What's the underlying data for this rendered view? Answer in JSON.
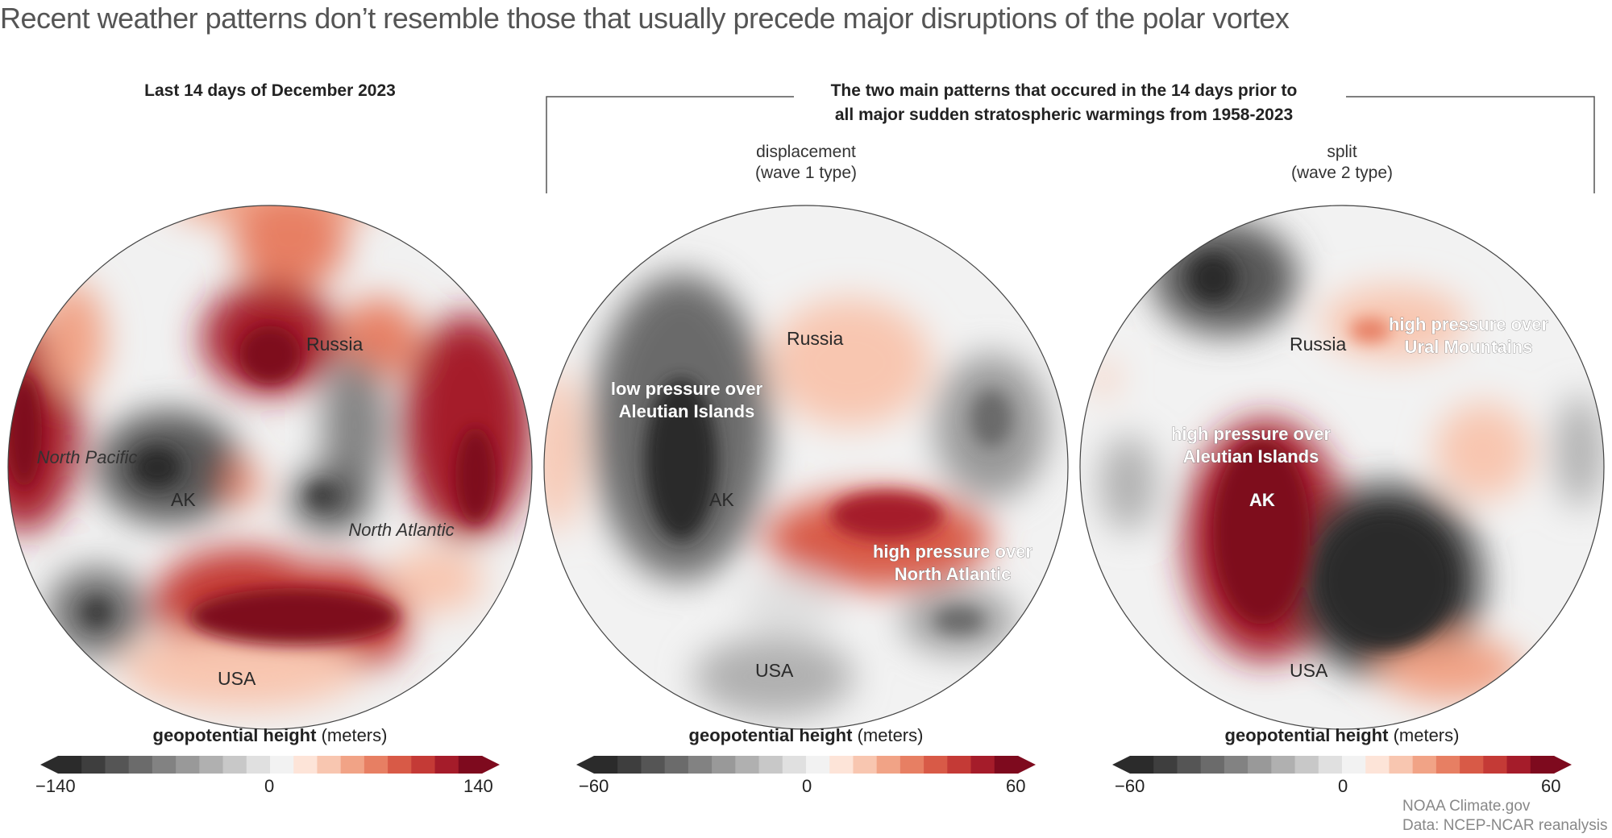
{
  "title": "Recent weather patterns don’t resemble those that usually precede major disruptions of the polar vortex",
  "panel1": {
    "heading": "Last 14 days of December 2023",
    "labels": {
      "russia": "Russia",
      "north_pacific": "North Pacific",
      "ak": "AK",
      "north_atlantic": "North Atlantic",
      "usa": "USA"
    },
    "legend": {
      "title_bold": "geopotential height",
      "title_unit": "(meters)",
      "min": "−140",
      "mid": "0",
      "max": "140"
    }
  },
  "bracket_heading": {
    "line1": "The two main patterns that occured in the 14 days prior to",
    "line2": "all major sudden stratospheric warmings from 1958-2023"
  },
  "panel2": {
    "heading_line1": "displacement",
    "heading_line2": "(wave 1 type)",
    "labels": {
      "russia": "Russia",
      "low1": "low pressure over",
      "low2": "Aleutian Islands",
      "ak": "AK",
      "high1": "high pressure over",
      "high2": "North Atlantic",
      "usa": "USA"
    },
    "legend": {
      "title_bold": "geopotential height",
      "title_unit": "(meters)",
      "min": "−60",
      "mid": "0",
      "max": "60"
    }
  },
  "panel3": {
    "heading_line1": "split",
    "heading_line2": "(wave 2 type)",
    "labels": {
      "russia": "Russia",
      "ural1": "high pressure over",
      "ural2": "Ural Mountains",
      "aleut1": "high pressure over",
      "aleut2": "Aleutian Islands",
      "ak": "AK",
      "usa": "USA"
    },
    "legend": {
      "title_bold": "geopotential height",
      "title_unit": "(meters)",
      "min": "−60",
      "mid": "0",
      "max": "60"
    }
  },
  "credit": {
    "line1": "NOAA Climate.gov",
    "line2": "Data: NCEP-NCAR reanalysis"
  },
  "colors": {
    "negative": [
      "#2b2b2b",
      "#3e3e3e",
      "#555555",
      "#6b6b6b",
      "#828282",
      "#999999",
      "#b0b0b0",
      "#c8c8c8",
      "#e0e0e0",
      "#f2f2f2"
    ],
    "positive": [
      "#fde4d8",
      "#f8c6b0",
      "#f1a386",
      "#e77f63",
      "#d85a47",
      "#c43a36",
      "#a51c2a",
      "#7e0a1e"
    ]
  }
}
